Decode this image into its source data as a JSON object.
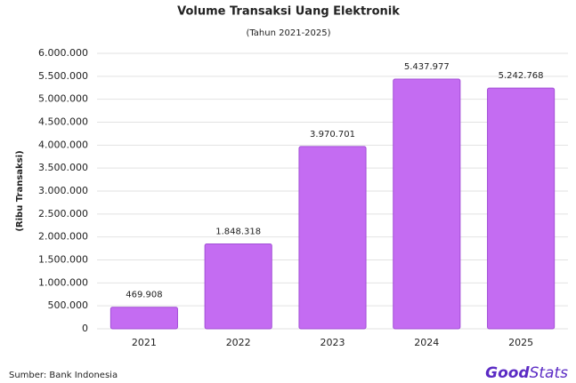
{
  "chart_data": {
    "type": "bar",
    "title": "Volume Transaksi Uang Elektronik",
    "subtitle": "(Tahun 2021-2025)",
    "y_label": "(Ribu Transaksi)",
    "categories": [
      "2021",
      "2022",
      "2023",
      "2024",
      "2025"
    ],
    "values": [
      469908,
      1848318,
      3970701,
      5437977,
      5242768
    ],
    "value_labels": [
      "469.908",
      "1.848.318",
      "3.970.701",
      "5.437.977",
      "5.242.768"
    ],
    "color": "#c46cf2",
    "ylim": [
      0,
      6000000
    ],
    "yticks": [
      0,
      {
        "value": 500000,
        "label": "500.000"
      },
      {
        "value": 1000000,
        "label": "1.000.000"
      },
      {
        "value": 1500000,
        "label": "1.500.000"
      },
      {
        "value": 2000000,
        "label": "2.000.000"
      },
      {
        "value": 2500000,
        "label": "2.500.000"
      },
      {
        "value": 3000000,
        "label": "3.000.000"
      },
      {
        "value": 3500000,
        "label": "3.500.000"
      },
      {
        "value": 4000000,
        "label": "4.000.000"
      },
      {
        "value": 4500000,
        "label": "4.500.000"
      },
      {
        "value": 5000000,
        "label": "5.000.000"
      },
      {
        "value": 5500000,
        "label": "5.500.000"
      },
      {
        "value": 6000000,
        "label": "6.000.000"
      }
    ],
    "grid": true
  },
  "source": "Sumber: Bank Indonesia",
  "logo": [
    "Good",
    "Stats"
  ]
}
